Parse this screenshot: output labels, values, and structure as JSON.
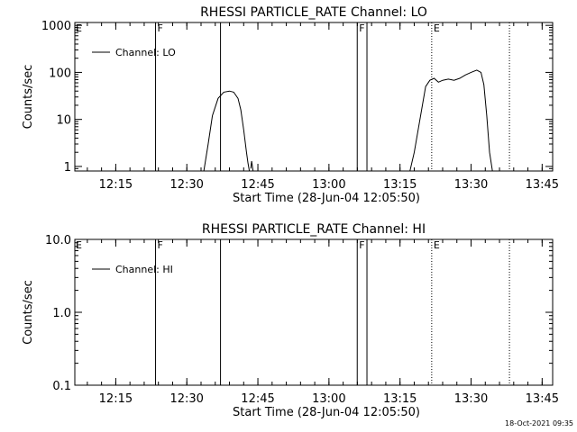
{
  "footer": {
    "timestamp": "18-Oct-2021 09:35"
  },
  "chart_data": [
    {
      "type": "line",
      "title": "RHESSI PARTICLE_RATE Channel: LO",
      "xlabel": "Start Time (28-Jun-04 12:05:50)",
      "ylabel": "Counts/sec",
      "yscale": "log",
      "xlim": [
        12.106,
        13.787
      ],
      "ylim": [
        0.8,
        1150
      ],
      "x_ticks": [
        12.25,
        12.5,
        12.75,
        13.0,
        13.25,
        13.5,
        13.75
      ],
      "x_tick_labels": [
        "12:15",
        "12:30",
        "12:45",
        "13:00",
        "13:15",
        "13:30",
        "13:45"
      ],
      "y_ticks": [
        1,
        10,
        100,
        1000
      ],
      "y_tick_labels": [
        "1",
        "10",
        "100",
        "1000"
      ],
      "legend": {
        "location": "top-left",
        "entries": [
          "Channel: LO"
        ]
      },
      "series": [
        {
          "name": "Channel: LO",
          "segments": [
            [
              [
                12.56,
                0.8
              ],
              [
                12.575,
                3
              ],
              [
                12.59,
                12
              ],
              [
                12.61,
                28
              ],
              [
                12.63,
                38
              ],
              [
                12.65,
                40
              ],
              [
                12.665,
                38
              ],
              [
                12.68,
                28
              ],
              [
                12.69,
                16
              ],
              [
                12.7,
                6
              ],
              [
                12.71,
                2
              ],
              [
                12.715,
                1.2
              ],
              [
                12.72,
                0.8
              ]
            ],
            [
              [
                12.725,
                0.9
              ],
              [
                12.728,
                1.3
              ],
              [
                12.733,
                0.8
              ]
            ],
            [
              [
                13.285,
                0.8
              ],
              [
                13.3,
                2
              ],
              [
                13.32,
                10
              ],
              [
                13.34,
                50
              ],
              [
                13.355,
                68
              ],
              [
                13.37,
                75
              ],
              [
                13.385,
                62
              ],
              [
                13.4,
                68
              ],
              [
                13.42,
                72
              ],
              [
                13.44,
                68
              ],
              [
                13.46,
                75
              ],
              [
                13.48,
                88
              ],
              [
                13.5,
                100
              ],
              [
                13.52,
                112
              ],
              [
                13.535,
                100
              ],
              [
                13.545,
                55
              ],
              [
                13.555,
                12
              ],
              [
                13.565,
                2
              ],
              [
                13.575,
                0.8
              ]
            ]
          ]
        }
      ],
      "markers": [
        {
          "x": 12.39,
          "style": "solid",
          "label": "F"
        },
        {
          "x": 12.6185,
          "style": "solid",
          "label": ""
        },
        {
          "x": 13.0995,
          "style": "solid",
          "label": "F"
        },
        {
          "x": 13.1337,
          "style": "solid",
          "label": ""
        },
        {
          "x": 13.3615,
          "style": "dotted",
          "label": "E"
        },
        {
          "x": 13.635,
          "style": "dotted",
          "label": ""
        }
      ],
      "edge_label": "E"
    },
    {
      "type": "line",
      "title": "RHESSI PARTICLE_RATE Channel: HI",
      "xlabel": "Start Time (28-Jun-04 12:05:50)",
      "ylabel": "Counts/sec",
      "yscale": "log",
      "xlim": [
        12.106,
        13.787
      ],
      "ylim": [
        0.1,
        10
      ],
      "x_ticks": [
        12.25,
        12.5,
        12.75,
        13.0,
        13.25,
        13.5,
        13.75
      ],
      "x_tick_labels": [
        "12:15",
        "12:30",
        "12:45",
        "13:00",
        "13:15",
        "13:30",
        "13:45"
      ],
      "y_ticks": [
        0.1,
        1,
        10
      ],
      "y_tick_labels": [
        "0.1",
        "1.0",
        "10.0"
      ],
      "legend": {
        "location": "top-left",
        "entries": [
          "Channel: HI"
        ]
      },
      "series": [
        {
          "name": "Channel: HI",
          "segments": []
        }
      ],
      "markers": [
        {
          "x": 12.39,
          "style": "solid",
          "label": "F"
        },
        {
          "x": 12.6185,
          "style": "solid",
          "label": ""
        },
        {
          "x": 13.0995,
          "style": "solid",
          "label": "F"
        },
        {
          "x": 13.1337,
          "style": "solid",
          "label": ""
        },
        {
          "x": 13.3615,
          "style": "dotted",
          "label": "E"
        },
        {
          "x": 13.635,
          "style": "dotted",
          "label": ""
        }
      ],
      "edge_label": "E"
    }
  ]
}
